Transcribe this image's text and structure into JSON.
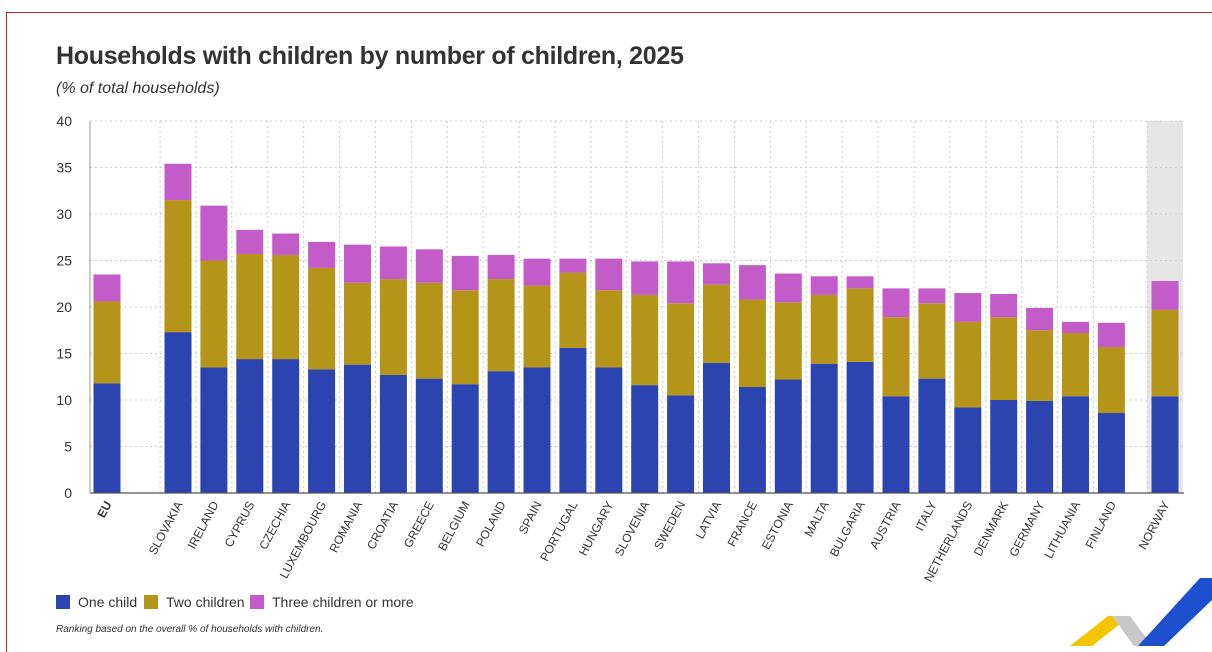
{
  "title": "Households with children by number of children, 2025",
  "subtitle": "(% of total households)",
  "footnote": "Ranking based on the overall % of households with children.",
  "colors": {
    "one": "#2b44b0",
    "two": "#b5941a",
    "three": "#c35bc9",
    "highlight_band": "#e6e6e6",
    "grid": "#cccccc",
    "text": "#333333"
  },
  "chart_data": {
    "type": "bar",
    "stacked": true,
    "categories": [
      "EU",
      "SLOVAKIA",
      "IRELAND",
      "CYPRUS",
      "CZECHIA",
      "LUXEMBOURG",
      "ROMANIA",
      "CROATIA",
      "GREECE",
      "BELGIUM",
      "POLAND",
      "SPAIN",
      "PORTUGAL",
      "HUNGARY",
      "SLOVENIA",
      "SWEDEN",
      "LATVIA",
      "FRANCE",
      "ESTONIA",
      "MALTA",
      "BULGARIA",
      "AUSTRIA",
      "ITALY",
      "NETHERLANDS",
      "DENMARK",
      "GERMANY",
      "LITHUANIA",
      "FINLAND",
      "NORWAY"
    ],
    "series": [
      {
        "name": "One child",
        "values": [
          11.8,
          17.3,
          13.5,
          14.4,
          14.4,
          13.3,
          13.8,
          12.7,
          12.3,
          11.7,
          13.1,
          13.5,
          15.6,
          13.5,
          11.6,
          10.5,
          14.0,
          11.4,
          12.2,
          13.9,
          14.1,
          10.4,
          12.3,
          9.2,
          10.0,
          9.9,
          10.4,
          8.6,
          10.4
        ]
      },
      {
        "name": "Two children",
        "values": [
          8.8,
          14.2,
          11.5,
          11.3,
          11.2,
          10.9,
          8.8,
          10.3,
          10.3,
          10.1,
          9.9,
          8.8,
          8.1,
          8.3,
          9.7,
          9.9,
          8.4,
          9.4,
          8.3,
          7.4,
          7.9,
          8.5,
          8.1,
          9.2,
          8.9,
          7.6,
          6.8,
          7.1,
          9.3
        ]
      },
      {
        "name": "Three children or more",
        "values": [
          2.9,
          3.9,
          5.9,
          2.6,
          2.3,
          2.8,
          4.1,
          3.5,
          3.6,
          3.7,
          2.6,
          2.9,
          1.5,
          3.4,
          3.6,
          4.5,
          2.3,
          3.7,
          3.1,
          2.0,
          1.3,
          3.1,
          1.6,
          3.1,
          2.5,
          2.4,
          1.2,
          2.6,
          3.1
        ]
      }
    ],
    "ylim": [
      0,
      40
    ],
    "yticks": [
      "0",
      "5",
      "10",
      "15",
      "20",
      "25",
      "30",
      "35",
      "40"
    ],
    "grid": true,
    "highlighted_categories": [
      "NORWAY"
    ],
    "legend_position": "bottom-left"
  }
}
